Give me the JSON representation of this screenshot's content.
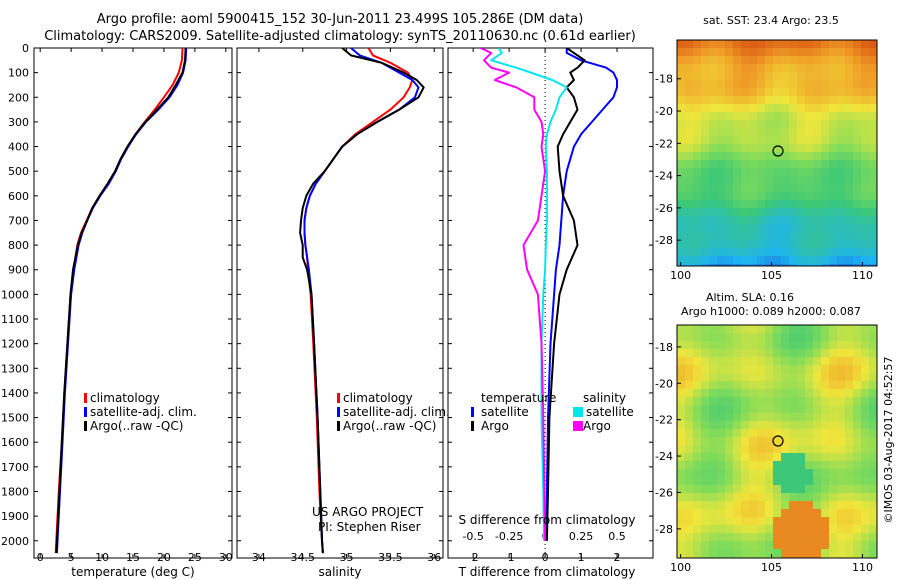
{
  "header": {
    "title_line1": "Argo profile: aoml 5900415_152 30-Jun-2011 23.499S 105.286E (DM data)",
    "title_line2": "Climatology: CARS2009. Satellite-adjusted climatology: synTS_20110630.nc (0.61d earlier)"
  },
  "colors": {
    "climatology": "#ff0000",
    "satellite": "#0000ff",
    "argo": "#000000",
    "satellite_s": "#00e5ee",
    "argo_s": "#ff00ff"
  },
  "chart_data": [
    {
      "type": "line",
      "xlabel": "temperature (deg C)",
      "ylabel": "",
      "xlim": [
        -1,
        31
      ],
      "ylim": [
        2070,
        0
      ],
      "xticks": [
        0,
        5,
        10,
        15,
        20,
        25,
        30
      ],
      "yticks": [
        0,
        100,
        200,
        300,
        400,
        500,
        600,
        700,
        800,
        900,
        1000,
        1100,
        1200,
        1300,
        1400,
        1500,
        1600,
        1700,
        1800,
        1900,
        2000
      ],
      "legend": [
        "climatology",
        "satellite-adj. clim.",
        "Argo(..raw -QC)"
      ],
      "legend_position": "bottom-right",
      "grid": false,
      "depth": [
        0,
        50,
        100,
        150,
        200,
        250,
        300,
        350,
        400,
        450,
        500,
        550,
        600,
        650,
        700,
        750,
        800,
        900,
        1000,
        1200,
        1400,
        1600,
        1800,
        2000,
        2050
      ],
      "series": [
        {
          "name": "climatology",
          "values": [
            23.0,
            22.9,
            22.4,
            21.4,
            20.0,
            18.5,
            16.9,
            15.4,
            14.2,
            13.1,
            12.2,
            11.0,
            9.6,
            8.4,
            7.5,
            6.6,
            6.0,
            5.4,
            4.9,
            4.4,
            3.9,
            3.5,
            3.0,
            2.6,
            2.5
          ]
        },
        {
          "name": "satellite-adj. clim.",
          "values": [
            23.6,
            23.5,
            23.1,
            22.2,
            20.9,
            19.1,
            17.1,
            15.5,
            14.2,
            13.1,
            12.2,
            11.1,
            9.7,
            8.5,
            7.6,
            6.8,
            6.2,
            5.5,
            5.0,
            4.5,
            4.0,
            3.6,
            3.2,
            2.8,
            2.7
          ]
        },
        {
          "name": "Argo(..raw -QC)",
          "values": [
            23.5,
            23.4,
            23.0,
            21.9,
            20.7,
            18.9,
            17.0,
            15.4,
            14.1,
            13.0,
            12.1,
            10.9,
            9.6,
            8.4,
            7.6,
            6.7,
            6.1,
            5.3,
            4.9,
            4.4,
            3.9,
            3.5,
            3.1,
            2.7,
            2.6
          ]
        }
      ]
    },
    {
      "type": "line",
      "xlabel": "salinity",
      "ylabel": "",
      "xlim": [
        33.75,
        36.1
      ],
      "ylim": [
        2070,
        0
      ],
      "xticks": [
        34,
        34.5,
        35,
        35.5,
        36
      ],
      "legend": [
        "climatology",
        "satellite-adj. clim.",
        "Argo(..raw -QC)"
      ],
      "legend_position": "bottom-right",
      "annotation_lines": [
        "US ARGO PROJECT",
        "PI: Stephen Riser"
      ],
      "depth": [
        0,
        30,
        60,
        100,
        130,
        160,
        200,
        250,
        300,
        350,
        400,
        450,
        500,
        550,
        600,
        650,
        700,
        750,
        800,
        850,
        900,
        1000,
        1200,
        1500,
        1800,
        2000,
        2050
      ],
      "series": [
        {
          "name": "climatology",
          "values": [
            35.25,
            35.3,
            35.5,
            35.7,
            35.75,
            35.72,
            35.65,
            35.5,
            35.3,
            35.1,
            34.95,
            34.85,
            34.75,
            34.65,
            34.58,
            34.54,
            34.52,
            34.52,
            34.53,
            34.55,
            34.56,
            34.59,
            34.62,
            34.66,
            34.69,
            34.72,
            34.73
          ]
        },
        {
          "name": "satellite-adj. clim.",
          "values": [
            35.05,
            35.15,
            35.4,
            35.6,
            35.75,
            35.82,
            35.78,
            35.6,
            35.35,
            35.12,
            34.95,
            34.85,
            34.75,
            34.65,
            34.58,
            34.54,
            34.52,
            34.52,
            34.53,
            34.55,
            34.57,
            34.6,
            34.63,
            34.67,
            34.7,
            34.72,
            34.73
          ]
        },
        {
          "name": "Argo(..raw -QC)",
          "values": [
            34.95,
            35.05,
            35.4,
            35.65,
            35.8,
            35.88,
            35.82,
            35.6,
            35.35,
            35.12,
            34.95,
            34.85,
            34.75,
            34.62,
            34.54,
            34.5,
            34.48,
            34.47,
            34.5,
            34.5,
            34.55,
            34.6,
            34.63,
            34.67,
            34.7,
            34.72,
            34.73
          ]
        }
      ]
    },
    {
      "type": "line",
      "xlabel": "T difference from climatology",
      "xlabel_top": "S difference from climatology",
      "xlim": [
        -2.7,
        3.0
      ],
      "ylim": [
        2070,
        0
      ],
      "xticks": [
        -2,
        -1,
        0,
        1,
        2
      ],
      "xticks_s": [
        "-0.5",
        "-0.25",
        "0",
        "0.25",
        "0.5"
      ],
      "s_tick_positions": [
        -2,
        -1,
        0,
        1,
        2
      ],
      "legend_group_titles": [
        "temperature",
        "salinity"
      ],
      "legend": [
        "satellite",
        "Argo",
        "satellite",
        "Argo"
      ],
      "legend_position": "bottom",
      "depth": [
        0,
        20,
        50,
        80,
        100,
        130,
        160,
        200,
        250,
        300,
        350,
        400,
        500,
        600,
        700,
        800,
        900,
        1000,
        1200,
        1500,
        1800,
        2000
      ],
      "series": [
        {
          "name": "satellite",
          "quantity": "temperature",
          "values": [
            0.6,
            0.6,
            1.0,
            1.7,
            1.9,
            2.0,
            2.0,
            1.9,
            1.6,
            1.3,
            1.0,
            0.8,
            0.6,
            0.5,
            0.45,
            0.4,
            0.3,
            0.25,
            0.15,
            0.08,
            0.05,
            0.03
          ]
        },
        {
          "name": "Argo",
          "quantity": "temperature",
          "values": [
            0.6,
            0.8,
            1.1,
            0.9,
            0.7,
            0.8,
            0.6,
            0.8,
            0.9,
            0.7,
            0.5,
            0.35,
            0.4,
            0.5,
            0.8,
            0.9,
            0.6,
            0.4,
            0.25,
            0.12,
            0.08,
            0.05
          ]
        },
        {
          "name": "satellite",
          "quantity": "salinity",
          "values": [
            -1.3,
            -1.2,
            -1.5,
            -0.8,
            -0.4,
            0.2,
            0.6,
            0.4,
            0.3,
            0.15,
            0.05,
            0.02,
            0.05,
            0.05,
            0.05,
            0.02,
            0.0,
            -0.05,
            -0.1,
            -0.1,
            -0.05,
            -0.03
          ]
        },
        {
          "name": "Argo",
          "quantity": "salinity",
          "values": [
            -1.8,
            -1.5,
            -1.7,
            -1.5,
            -1.0,
            -1.4,
            -0.8,
            -0.3,
            -0.3,
            -0.1,
            -0.05,
            -0.1,
            0.0,
            -0.1,
            -0.2,
            -0.6,
            -0.5,
            -0.2,
            -0.1,
            -0.05,
            -0.02,
            0.0
          ]
        }
      ]
    },
    {
      "type": "heatmap",
      "title": "sat. SST: 23.4  Argo: 23.5",
      "xlim": [
        99.8,
        110.8
      ],
      "ylim": [
        -29.6,
        -15.6
      ],
      "xticks": [
        100,
        105,
        110
      ],
      "yticks": [
        -28,
        -26,
        -24,
        -22,
        -20,
        -18
      ],
      "float_position": [
        105.286,
        -23.499
      ]
    },
    {
      "type": "heatmap",
      "title_line1": "Altim. SLA: 0.16",
      "title_line2": "Argo h1000: 0.089 h2000: 0.087",
      "xlim": [
        99.8,
        110.8
      ],
      "ylim": [
        -29.6,
        -16.8
      ],
      "xticks": [
        100,
        105,
        110
      ],
      "yticks": [
        -28,
        -26,
        -24,
        -22,
        -20,
        -18
      ],
      "float_position": [
        105.286,
        -23.499
      ]
    }
  ],
  "footer": {
    "credit": "©IMOS 03-Aug-2017 04:52:57"
  }
}
